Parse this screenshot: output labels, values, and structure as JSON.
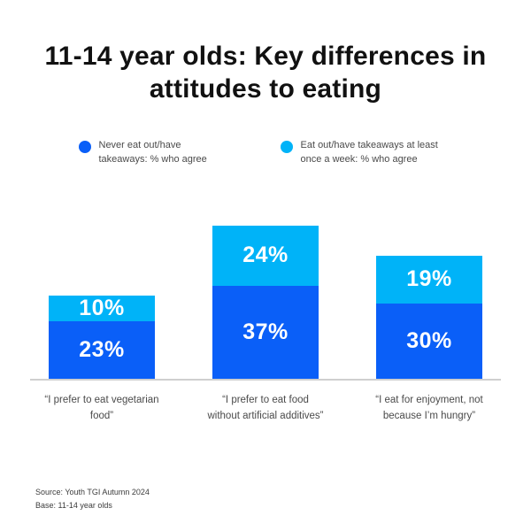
{
  "title": "11-14 year olds: Key differences in attitudes to eating",
  "colors": {
    "dark_blue": "#0A5FF8",
    "light_blue": "#00B3F8",
    "axis_line": "#cfcfcf",
    "text_dark": "#111111",
    "text_gray": "#4a4a4a"
  },
  "chart_data": {
    "type": "bar",
    "stacked": true,
    "categories": [
      "“I prefer to eat vegetarian food”",
      "“I prefer to eat food without artificial additives”",
      "“I eat for enjoyment, not because I’m hungry”"
    ],
    "series": [
      {
        "key": "never-eat-out",
        "name": "Never eat out/have takeaways: % who agree",
        "color": "#0A5FF8",
        "values": [
          23,
          37,
          30
        ]
      },
      {
        "key": "eat-out-weekly",
        "name": "Eat out/have takeaways at least once a week: % who agree",
        "color": "#00B3F8",
        "values": [
          10,
          24,
          19
        ]
      }
    ],
    "value_suffix": "%",
    "ylim": [
      0,
      61
    ],
    "grid": false,
    "legend_position": "top"
  },
  "footer": {
    "source": "Source: Youth TGI Autumn 2024",
    "base": "Base: 11-14 year olds"
  }
}
